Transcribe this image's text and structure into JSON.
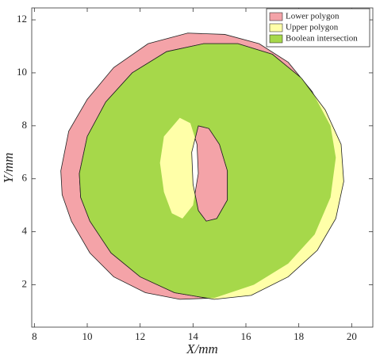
{
  "chart_data": {
    "type": "polygon",
    "xlabel": "X/mm",
    "ylabel": "Y/mm",
    "xlim": [
      7.9,
      20.8
    ],
    "ylim": [
      0.4,
      12.45
    ],
    "xticks": [
      8,
      10,
      12,
      14,
      16,
      18,
      20
    ],
    "yticks": [
      2,
      4,
      6,
      8,
      10,
      12
    ],
    "legend": "upper right",
    "series": [
      {
        "name": "Lower polygon",
        "color": "#f4a3a8",
        "rings": [
          {
            "x": [
              9.0,
              9.3,
              10.0,
              11.0,
              12.3,
              13.8,
              15.2,
              16.5,
              17.6,
              18.5,
              19.2,
              19.4,
              19.2,
              18.6,
              17.6,
              16.3,
              14.8,
              13.5,
              12.2,
              11.0,
              10.1,
              9.4,
              9.05
            ],
            "y": [
              6.3,
              7.8,
              9.0,
              10.2,
              11.1,
              11.5,
              11.45,
              11.1,
              10.4,
              9.3,
              8.0,
              6.8,
              5.3,
              3.9,
              2.8,
              2.0,
              1.5,
              1.45,
              1.7,
              2.3,
              3.2,
              4.4,
              5.4
            ]
          },
          {
            "x": [
              13.5,
              13.9,
              14.15,
              14.2,
              14.0,
              13.6,
              13.2,
              12.9,
              12.75,
              12.9
            ],
            "y": [
              8.3,
              8.1,
              7.3,
              6.2,
              5.0,
              4.5,
              4.7,
              5.5,
              6.6,
              7.6
            ]
          }
        ]
      },
      {
        "name": "Upper polygon",
        "color": "#ffffa8",
        "rings": [
          {
            "x": [
              9.7,
              10.0,
              10.7,
              11.7,
              13.0,
              14.4,
              15.7,
              17.0,
              18.1,
              19.0,
              19.6,
              19.7,
              19.4,
              18.7,
              17.6,
              16.2,
              14.8,
              13.3,
              12.0,
              10.9,
              10.1,
              9.75
            ],
            "y": [
              6.2,
              7.6,
              8.9,
              10.0,
              10.8,
              11.1,
              11.1,
              10.7,
              9.8,
              8.6,
              7.3,
              5.9,
              4.5,
              3.3,
              2.3,
              1.6,
              1.45,
              1.7,
              2.3,
              3.2,
              4.4,
              5.3
            ]
          },
          {
            "x": [
              14.2,
              14.6,
              15.0,
              15.3,
              15.3,
              14.9,
              14.5,
              14.2,
              14.0,
              13.95
            ],
            "y": [
              8.0,
              7.9,
              7.3,
              6.3,
              5.2,
              4.5,
              4.4,
              4.8,
              5.8,
              7.0
            ]
          }
        ]
      },
      {
        "name": "Boolean intersection",
        "color": "#a6d84a",
        "operands": [
          0,
          1
        ]
      }
    ]
  }
}
